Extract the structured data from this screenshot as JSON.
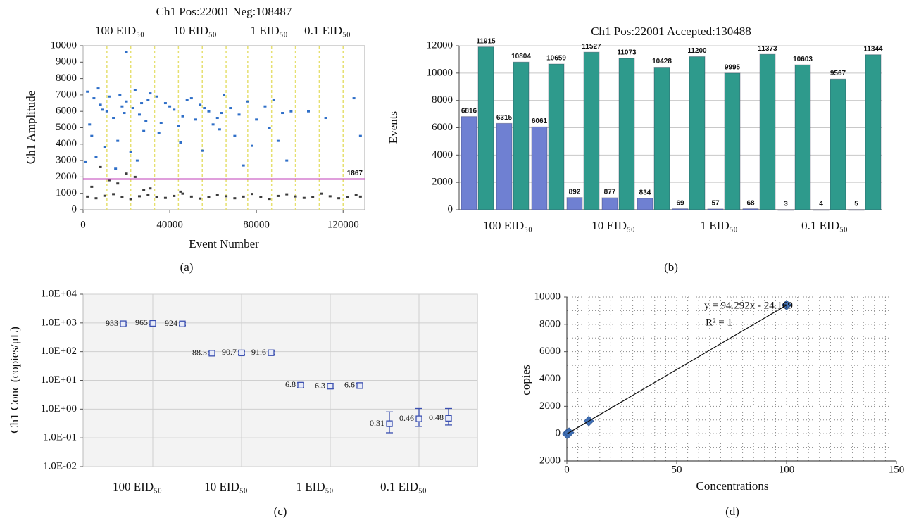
{
  "chart_data": [
    {
      "type": "scatter",
      "panel_label": "(a)",
      "title": "Ch1 Pos:22001 Neg:108487",
      "top_labels": [
        "100 EID₅₀",
        "10 EID₅₀",
        "1 EID₅₀",
        "0.1 EID₅₀"
      ],
      "xlabel": "Event Number",
      "ylabel": "Ch1 Amplitude",
      "xlim": [
        0,
        130000
      ],
      "xticks": [
        0,
        40000,
        80000,
        120000
      ],
      "ylim": [
        0,
        10000
      ],
      "yticks": [
        0,
        1000,
        2000,
        3000,
        4000,
        5000,
        6000,
        7000,
        8000,
        9000,
        10000
      ],
      "marker": "square",
      "well_boundaries": [
        11000,
        22000,
        33000,
        44000,
        55000,
        66000,
        76000,
        87000,
        98000,
        109000,
        120000
      ],
      "boundary_color": "#e6e070",
      "threshold": 1867,
      "threshold_color": "#c23fb8",
      "series": [
        {
          "color": "#2f6fc8",
          "x": [
            2000,
            5000,
            8000,
            11000,
            14000,
            17000,
            20000,
            23000,
            26000,
            29000,
            31000,
            3000,
            7000,
            12000,
            18000,
            24000,
            30000,
            4000,
            10000,
            16000,
            22000,
            28000,
            1000,
            6000,
            15000,
            25000,
            9000,
            19000,
            27000,
            34000,
            38000,
            42000,
            46000,
            50000,
            54000,
            58000,
            62000,
            65000,
            36000,
            44000,
            52000,
            60000,
            40000,
            48000,
            56000,
            64000,
            35000,
            45000,
            55000,
            63000,
            68000,
            72000,
            76000,
            80000,
            84000,
            88000,
            92000,
            96000,
            70000,
            78000,
            86000,
            94000,
            74000,
            90000,
            104000,
            112000,
            125000,
            128000,
            20000
          ],
          "values": [
            7200,
            6800,
            6400,
            6000,
            5600,
            7000,
            6600,
            6200,
            5800,
            5400,
            7100,
            5200,
            7400,
            6900,
            6300,
            7300,
            6700,
            4500,
            3800,
            4200,
            3500,
            4800,
            2900,
            3200,
            2500,
            3000,
            6100,
            5900,
            6500,
            6900,
            6500,
            6100,
            5700,
            6800,
            6400,
            6000,
            5600,
            7000,
            5300,
            5100,
            5500,
            5200,
            6300,
            6700,
            6200,
            5900,
            4700,
            4100,
            3600,
            4900,
            6200,
            5800,
            6600,
            5500,
            6300,
            6700,
            5900,
            6000,
            4500,
            3900,
            5000,
            3000,
            2700,
            4200,
            6000,
            5600,
            6800,
            4500,
            9600
          ]
        },
        {
          "color": "#3c3c3c",
          "x": [
            2000,
            10000,
            18000,
            26000,
            34000,
            42000,
            50000,
            58000,
            66000,
            74000,
            82000,
            90000,
            98000,
            106000,
            114000,
            122000,
            128000,
            6000,
            14000,
            22000,
            30000,
            38000,
            46000,
            54000,
            62000,
            70000,
            78000,
            86000,
            94000,
            102000,
            110000,
            118000,
            126000,
            4000,
            12000,
            20000,
            28000,
            8000,
            16000,
            24000,
            31000,
            45000
          ],
          "values": [
            800,
            850,
            780,
            820,
            760,
            840,
            800,
            780,
            820,
            800,
            760,
            840,
            810,
            790,
            820,
            780,
            800,
            700,
            950,
            650,
            900,
            720,
            980,
            680,
            920,
            700,
            960,
            660,
            940,
            720,
            980,
            700,
            900,
            1400,
            1800,
            2200,
            1200,
            2600,
            1600,
            2000,
            1300,
            1100
          ]
        }
      ]
    },
    {
      "type": "bar",
      "panel_label": "(b)",
      "title": "Ch1 Pos:22001 Accepted:130488",
      "title_color": "#2b3c84",
      "ylabel": "Events",
      "categories": [
        null,
        "100 EID₅₀",
        null,
        null,
        "10 EID₅₀",
        null,
        null,
        "1 EID₅₀",
        null,
        null,
        "0.1 EID₅₀",
        null
      ],
      "series": [
        {
          "color": "#6f80d2",
          "values": [
            6816,
            6315,
            6061,
            892,
            877,
            834,
            69,
            57,
            68,
            3,
            4,
            5
          ]
        },
        {
          "color": "#2e9a8c",
          "values": [
            11915,
            10804,
            10659,
            11527,
            11073,
            10428,
            11200,
            9995,
            11373,
            10603,
            9567,
            11344
          ]
        }
      ],
      "ylim": [
        0,
        12000
      ],
      "yticks": [
        0,
        2000,
        4000,
        6000,
        8000,
        10000,
        12000
      ],
      "grid": true
    },
    {
      "type": "errorbar",
      "panel_label": "(c)",
      "ylabel": "Ch1 Conc (copies/μL)",
      "categories": [
        null,
        "100 EID₅₀",
        null,
        null,
        "10 EID₅₀",
        null,
        null,
        "1 EID₅₀",
        null,
        null,
        "0.1 EID₅₀",
        null
      ],
      "values": [
        933,
        965,
        924,
        88.5,
        90.7,
        91.6,
        6.8,
        6.3,
        6.6,
        0.31,
        0.46,
        0.48
      ],
      "lower": [
        830,
        860,
        820,
        78,
        80,
        81,
        5.6,
        5.2,
        5.4,
        0.15,
        0.25,
        0.28
      ],
      "upper": [
        1050,
        1085,
        1040,
        100,
        103,
        104,
        8.3,
        7.6,
        8.0,
        0.8,
        1.05,
        1.05
      ],
      "color": "#3a4fb0",
      "log": true,
      "ylim": [
        0.01,
        10000
      ],
      "yticks": [
        {
          "value": 0.01,
          "label": "1.0E-02"
        },
        {
          "value": 0.1,
          "label": "1.0E-01"
        },
        {
          "value": 1,
          "label": "1.0E+00"
        },
        {
          "value": 10,
          "label": "1.0E+01"
        },
        {
          "value": 100,
          "label": "1.0E+02"
        },
        {
          "value": 1000,
          "label": "1.0E+03"
        },
        {
          "value": 10000,
          "label": "1.0E+04"
        }
      ],
      "grid": true
    },
    {
      "type": "scatter",
      "panel_label": "(d)",
      "xlabel": "Concentrations",
      "ylabel": "copies",
      "x": [
        0.1,
        1,
        10,
        100
      ],
      "values": [
        -15,
        70,
        919,
        9405
      ],
      "color": "#3f6fb5",
      "marker": "diamond",
      "xlim": [
        0,
        150
      ],
      "xticks": [
        0,
        50,
        100,
        150
      ],
      "ylim": [
        -2000,
        10000
      ],
      "yticks": [
        {
          "value": -2000,
          "label": "−2000"
        },
        0,
        2000,
        4000,
        6000,
        8000,
        10000
      ],
      "equation": "y = 94.292x - 24.169",
      "r_squared": "R² = 1",
      "trendline": {
        "slope": 94.292,
        "intercept": -24.169
      },
      "grid": "dotted"
    }
  ]
}
